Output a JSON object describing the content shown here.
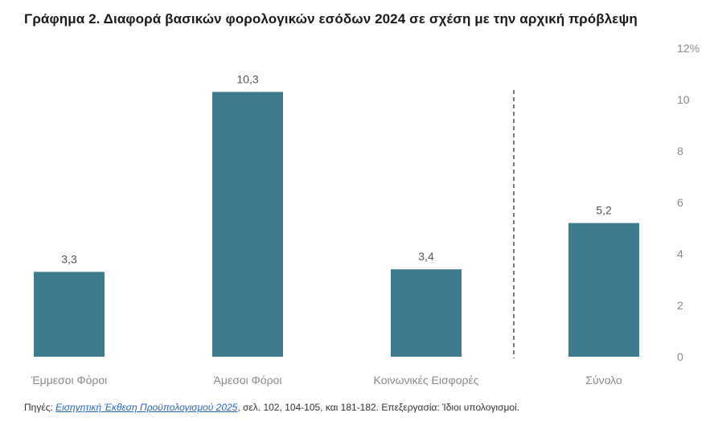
{
  "chart_data": {
    "type": "bar",
    "title": "Γράφημα 2. Διαφορά βασικών φορολογικών εσόδων 2024 σε σχέση με την αρχική πρόβλεψη",
    "categories": [
      "Έμμεσοι Φόροι",
      "Άμεσοι Φόροι",
      "Κοινωνικές Εισφορές",
      "Σύνολο"
    ],
    "values": [
      3.3,
      10.3,
      3.4,
      5.2
    ],
    "data_labels": [
      "3,3",
      "10,3",
      "3,4",
      "5,2"
    ],
    "ylim": [
      0,
      12
    ],
    "y_ticks": [
      0,
      2,
      4,
      6,
      8,
      10,
      12
    ],
    "y_tick_labels": [
      "0",
      "2",
      "4",
      "6",
      "8",
      "10",
      "12%"
    ],
    "y_axis_position": "right",
    "grid": false,
    "bar_color": "#3e7b8f",
    "separator": "dashed line between Κοινωνικές Εισφορές and Σύνολο"
  },
  "source": {
    "prefix": "Πηγές: ",
    "link_text": "Εισηγητική Έκθεση Προϋπολογισμού 2025",
    "suffix": ", σελ.  102, 104-105, και 181-182. Επεξεργασία: Ίδιοι υπολογισμοί."
  }
}
